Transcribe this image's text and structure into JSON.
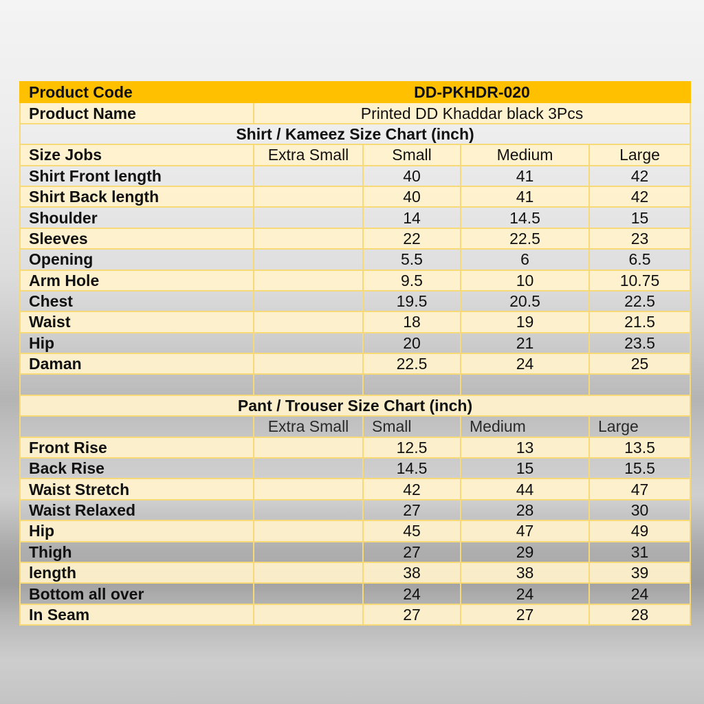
{
  "product": {
    "code_label": "Product Code",
    "code_value": "DD-PKHDR-020",
    "name_label": "Product Name",
    "name_value": "Printed DD Khaddar black 3Pcs"
  },
  "colors": {
    "header": "#FFC000",
    "row": "#FFF2CC",
    "border": "#F7D978"
  },
  "shirt": {
    "title": "Shirt / Kameez Size Chart (inch)",
    "header": [
      "Size Jobs",
      "Extra Small",
      "Small",
      "Medium",
      "Large"
    ],
    "rows": [
      [
        "Shirt Front length",
        "",
        "40",
        "41",
        "42"
      ],
      [
        "Shirt Back length",
        "",
        "40",
        "41",
        "42"
      ],
      [
        "Shoulder",
        "",
        "14",
        "14.5",
        "15"
      ],
      [
        "Sleeves",
        "",
        "22",
        "22.5",
        "23"
      ],
      [
        "Opening",
        "",
        "5.5",
        "6",
        "6.5"
      ],
      [
        "Arm Hole",
        "",
        "9.5",
        "10",
        "10.75"
      ],
      [
        "Chest",
        "",
        "19.5",
        "20.5",
        "22.5"
      ],
      [
        "Waist",
        "",
        "18",
        "19",
        "21.5"
      ],
      [
        "Hip",
        "",
        "20",
        "21",
        "23.5"
      ],
      [
        "Daman",
        "",
        "22.5",
        "24",
        "25"
      ]
    ]
  },
  "pant": {
    "title": "Pant / Trouser Size Chart (inch)",
    "header": [
      "",
      "Extra Small",
      "Small",
      "Medium",
      "Large"
    ],
    "rows": [
      [
        "Front Rise",
        "",
        "12.5",
        "13",
        "13.5"
      ],
      [
        "Back Rise",
        "",
        "14.5",
        "15",
        "15.5"
      ],
      [
        "Waist Stretch",
        "",
        "42",
        "44",
        "47"
      ],
      [
        "Waist Relaxed",
        "",
        "27",
        "28",
        "30"
      ],
      [
        "Hip",
        "",
        "45",
        "47",
        "49"
      ],
      [
        "Thigh",
        "",
        "27",
        "29",
        "31"
      ],
      [
        "length",
        "",
        "38",
        "38",
        "39"
      ],
      [
        "Bottom all over",
        "",
        "24",
        "24",
        "24"
      ],
      [
        "In Seam",
        "",
        "27",
        "27",
        "28"
      ]
    ]
  }
}
